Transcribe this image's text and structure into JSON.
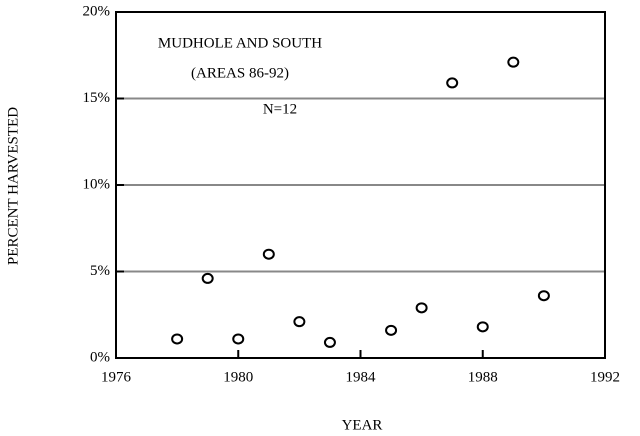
{
  "chart_data": {
    "type": "scatter",
    "annotations": [
      "MUDHOLE AND SOUTH",
      "(AREAS 86-92)",
      "N=12"
    ],
    "xlabel": "YEAR",
    "ylabel": "PERCENT HARVESTED",
    "x": [
      1978,
      1979,
      1980,
      1981,
      1982,
      1983,
      1985,
      1986,
      1987,
      1988,
      1989,
      1990
    ],
    "values": [
      1.1,
      4.6,
      1.1,
      6.0,
      2.1,
      0.9,
      1.6,
      2.9,
      15.9,
      1.8,
      17.1,
      3.6
    ],
    "color": "#000000",
    "xlim": [
      1976,
      1992
    ],
    "xticks": [
      1976,
      1980,
      1984,
      1988,
      1992
    ],
    "ylim": [
      0,
      20
    ],
    "yticks": [
      {
        "value": 0,
        "label": "0%"
      },
      {
        "value": 5,
        "label": "5%"
      },
      {
        "value": 10,
        "label": "10%"
      },
      {
        "value": 15,
        "label": "15%"
      },
      {
        "value": 20,
        "label": "20%"
      }
    ],
    "grid": true
  }
}
